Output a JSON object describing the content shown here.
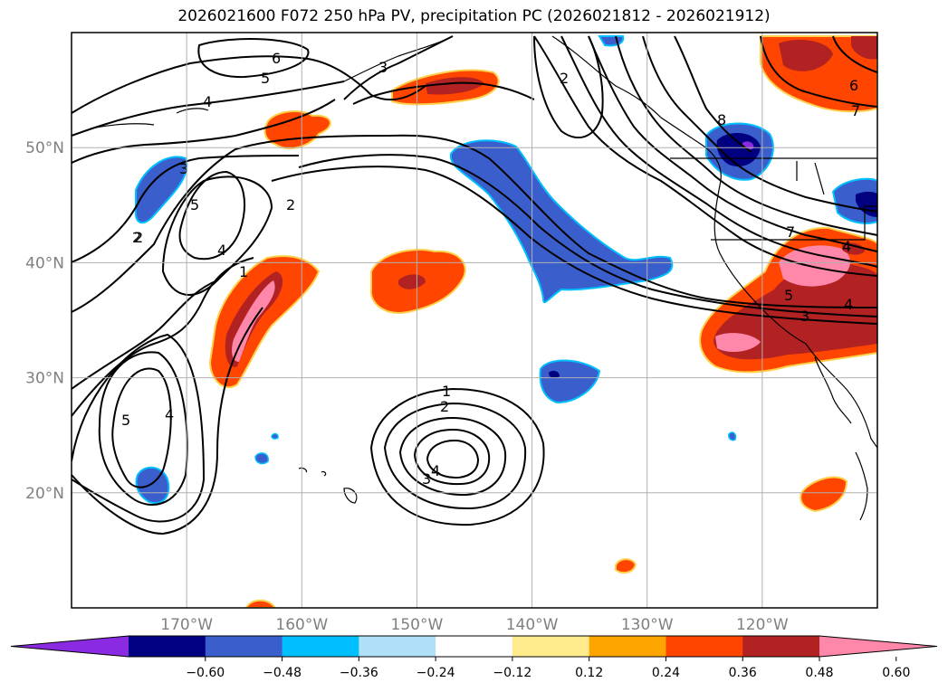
{
  "title": "2026021600 F072 250 hPa PV, precipitation PC (2026021812 - 2026021912)",
  "map": {
    "lat_labels": [
      "50°N",
      "40°N",
      "30°N",
      "20°N"
    ],
    "lon_labels": [
      "170°W",
      "160°W",
      "150°W",
      "140°W",
      "130°W",
      "120°W"
    ],
    "lat_values": [
      50,
      40,
      30,
      20
    ],
    "lon_values": [
      -170,
      -160,
      -150,
      -140,
      -130,
      -120
    ],
    "extent": {
      "lon_min": -180,
      "lon_max": -110,
      "lat_min": 10,
      "lat_max": 60
    }
  },
  "contour_labels": [
    "6",
    "5",
    "4",
    "3",
    "2",
    "5",
    "4",
    "2",
    "1",
    "5",
    "4",
    "3",
    "2",
    "1",
    "2",
    "3",
    "4",
    "2",
    "8",
    "7",
    "5",
    "4",
    "3",
    "4",
    "6",
    "7"
  ],
  "colorbar": {
    "ticks": [
      "−0.60",
      "−0.48",
      "−0.36",
      "−0.24",
      "−0.12",
      "0.12",
      "0.24",
      "0.36",
      "0.48",
      "0.60"
    ],
    "colors": [
      "#8a2be2",
      "#000080",
      "#3a5fcd",
      "#00bfff",
      "#b0e0f8",
      "#ffffff",
      "#ffeb8c",
      "#ffa500",
      "#ff4500",
      "#b22222",
      "#ff88aa"
    ]
  }
}
